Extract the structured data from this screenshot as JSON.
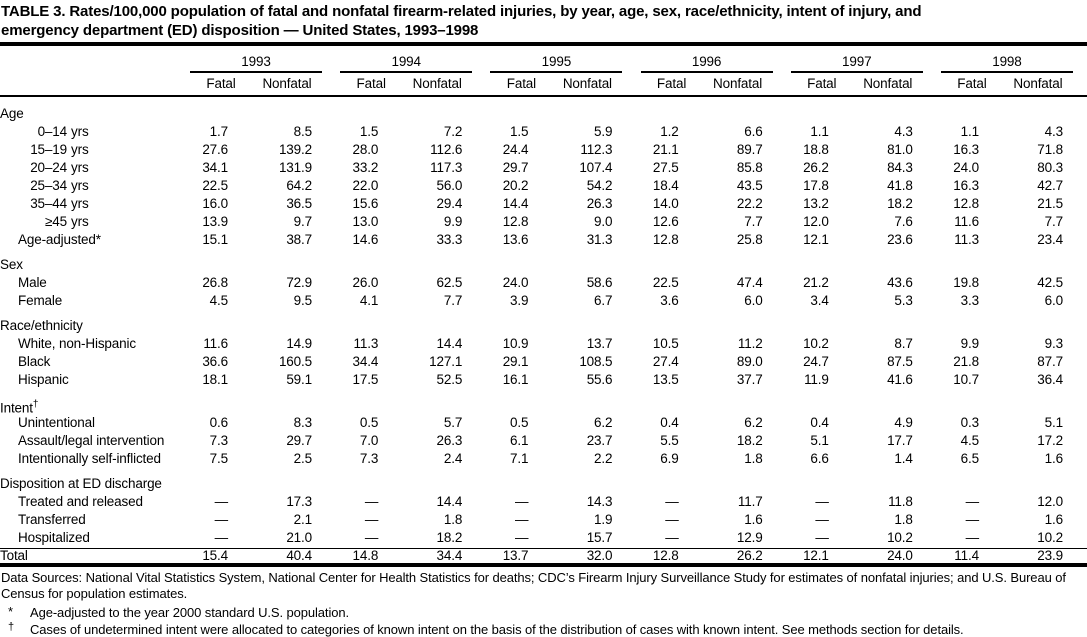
{
  "title_lines": [
    "TABLE 3. Rates/100,000 population of fatal and nonfatal firearm-related injuries, by year, age, sex, race/ethnicity, intent of injury, and",
    "emergency department (ED) disposition — United States, 1993–1998"
  ],
  "table": {
    "years": [
      "1993",
      "1994",
      "1995",
      "1996",
      "1997",
      "1998"
    ],
    "sub_columns": [
      "Fatal",
      "Nonfatal"
    ],
    "rows": [
      {
        "kind": "section",
        "label": "Age"
      },
      {
        "kind": "age",
        "range": "0–14",
        "unit": "yrs",
        "values": [
          "1.7",
          "8.5",
          "1.5",
          "7.2",
          "1.5",
          "5.9",
          "1.2",
          "6.6",
          "1.1",
          "4.3",
          "1.1",
          "4.3"
        ]
      },
      {
        "kind": "age",
        "range": "15–19",
        "unit": "yrs",
        "values": [
          "27.6",
          "139.2",
          "28.0",
          "112.6",
          "24.4",
          "112.3",
          "21.1",
          "89.7",
          "18.8",
          "81.0",
          "16.3",
          "71.8"
        ]
      },
      {
        "kind": "age",
        "range": "20–24",
        "unit": "yrs",
        "values": [
          "34.1",
          "131.9",
          "33.2",
          "117.3",
          "29.7",
          "107.4",
          "27.5",
          "85.8",
          "26.2",
          "84.3",
          "24.0",
          "80.3"
        ]
      },
      {
        "kind": "age",
        "range": "25–34",
        "unit": "yrs",
        "values": [
          "22.5",
          "64.2",
          "22.0",
          "56.0",
          "20.2",
          "54.2",
          "18.4",
          "43.5",
          "17.8",
          "41.8",
          "16.3",
          "42.7"
        ]
      },
      {
        "kind": "age",
        "range": "35–44",
        "unit": "yrs",
        "values": [
          "16.0",
          "36.5",
          "15.6",
          "29.4",
          "14.4",
          "26.3",
          "14.0",
          "22.2",
          "13.2",
          "18.2",
          "12.8",
          "21.5"
        ]
      },
      {
        "kind": "age",
        "range": "≥45",
        "unit": "yrs",
        "values": [
          "13.9",
          "9.7",
          "13.0",
          "9.9",
          "12.8",
          "9.0",
          "12.6",
          "7.7",
          "12.0",
          "7.6",
          "11.6",
          "7.7"
        ]
      },
      {
        "kind": "indent",
        "label": "Age-adjusted*",
        "values": [
          "15.1",
          "38.7",
          "14.6",
          "33.3",
          "13.6",
          "31.3",
          "12.8",
          "25.8",
          "12.1",
          "23.6",
          "11.3",
          "23.4"
        ]
      },
      {
        "kind": "section",
        "label": "Sex"
      },
      {
        "kind": "indent",
        "label": "Male",
        "values": [
          "26.8",
          "72.9",
          "26.0",
          "62.5",
          "24.0",
          "58.6",
          "22.5",
          "47.4",
          "21.2",
          "43.6",
          "19.8",
          "42.5"
        ]
      },
      {
        "kind": "indent",
        "label": "Female",
        "values": [
          "4.5",
          "9.5",
          "4.1",
          "7.7",
          "3.9",
          "6.7",
          "3.6",
          "6.0",
          "3.4",
          "5.3",
          "3.3",
          "6.0"
        ]
      },
      {
        "kind": "section",
        "label": "Race/ethnicity"
      },
      {
        "kind": "indent",
        "label": "White, non-Hispanic",
        "values": [
          "11.6",
          "14.9",
          "11.3",
          "14.4",
          "10.9",
          "13.7",
          "10.5",
          "11.2",
          "10.2",
          "8.7",
          "9.9",
          "9.3"
        ]
      },
      {
        "kind": "indent",
        "label": "Black",
        "values": [
          "36.6",
          "160.5",
          "34.4",
          "127.1",
          "29.1",
          "108.5",
          "27.4",
          "89.0",
          "24.7",
          "87.5",
          "21.8",
          "87.7"
        ]
      },
      {
        "kind": "indent",
        "label": "Hispanic",
        "values": [
          "18.1",
          "59.1",
          "17.5",
          "52.5",
          "16.1",
          "55.6",
          "13.5",
          "37.7",
          "11.9",
          "41.6",
          "10.7",
          "36.4"
        ]
      },
      {
        "kind": "section",
        "label": "Intent",
        "sup": "†"
      },
      {
        "kind": "indent",
        "label": "Unintentional",
        "values": [
          "0.6",
          "8.3",
          "0.5",
          "5.7",
          "0.5",
          "6.2",
          "0.4",
          "6.2",
          "0.4",
          "4.9",
          "0.3",
          "5.1"
        ]
      },
      {
        "kind": "indent",
        "label": "Assault/legal intervention",
        "values": [
          "7.3",
          "29.7",
          "7.0",
          "26.3",
          "6.1",
          "23.7",
          "5.5",
          "18.2",
          "5.1",
          "17.7",
          "4.5",
          "17.2"
        ]
      },
      {
        "kind": "indent",
        "label": "Intentionally self-inflicted",
        "values": [
          "7.5",
          "2.5",
          "7.3",
          "2.4",
          "7.1",
          "2.2",
          "6.9",
          "1.8",
          "6.6",
          "1.4",
          "6.5",
          "1.6"
        ]
      },
      {
        "kind": "section",
        "label": "Disposition at ED discharge"
      },
      {
        "kind": "indent",
        "label": "Treated and released",
        "values": [
          "—",
          "17.3",
          "—",
          "14.4",
          "—",
          "14.3",
          "—",
          "11.7",
          "—",
          "11.8",
          "—",
          "12.0"
        ]
      },
      {
        "kind": "indent",
        "label": "Transferred",
        "values": [
          "—",
          "2.1",
          "—",
          "1.8",
          "—",
          "1.9",
          "—",
          "1.6",
          "—",
          "1.8",
          "—",
          "1.6"
        ]
      },
      {
        "kind": "indent",
        "label": "Hospitalized",
        "values": [
          "—",
          "21.0",
          "—",
          "18.2",
          "—",
          "15.7",
          "—",
          "12.9",
          "—",
          "10.2",
          "—",
          "10.2"
        ]
      },
      {
        "kind": "total",
        "label": "Total",
        "values": [
          "15.4",
          "40.4",
          "14.8",
          "34.4",
          "13.7",
          "32.0",
          "12.8",
          "26.2",
          "12.1",
          "24.0",
          "11.4",
          "23.9"
        ]
      }
    ]
  },
  "footnotes": {
    "data_sources": "Data Sources: National Vital Statistics System, National Center for Health Statistics for deaths; CDC’s Firearm Injury Surveillance Study for estimates of nonfatal injuries; and U.S. Bureau of Census for population estimates.",
    "asterisk_marker": "*",
    "asterisk_text": "Age-adjusted to the year 2000 standard U.S. population.",
    "dagger_marker": "†",
    "dagger_text": "Cases of undetermined intent were allocated to categories of known intent on the basis of the distribution of cases with known intent. See methods section for details."
  }
}
